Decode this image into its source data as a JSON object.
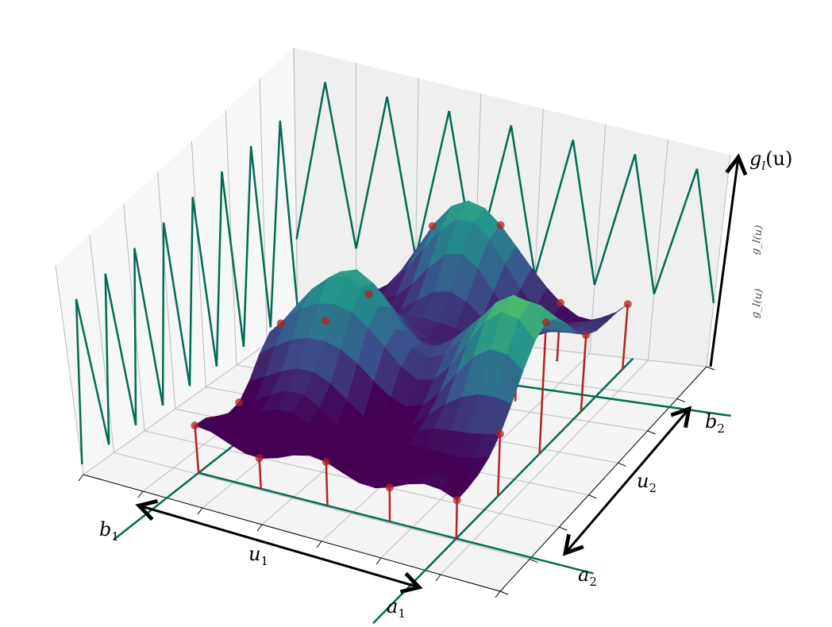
{
  "figure": {
    "z_axis_label": "g_l(u)",
    "z_label_base": "g",
    "z_label_sub": "l",
    "z_label_arg": "(u)",
    "u1_label": "u",
    "u1_sub": "1",
    "u2_label": "u",
    "u2_sub": "2",
    "a1_label": "a",
    "a1_sub": "1",
    "b1_label": "b",
    "b1_sub": "1",
    "a2_label": "a",
    "a2_sub": "2",
    "b2_label": "b",
    "b2_sub": "2"
  },
  "chart_data": {
    "type": "surface",
    "title": "",
    "xlabel": "u1",
    "ylabel": "u2",
    "zlabel": "g_l(u)",
    "x_range_labels": [
      "b1",
      "a1"
    ],
    "y_range_labels": [
      "a2",
      "b2"
    ],
    "colormap": "viridis",
    "stems_color": "#b22222",
    "boundary_lines_color": "#006b54",
    "grid": true
  }
}
